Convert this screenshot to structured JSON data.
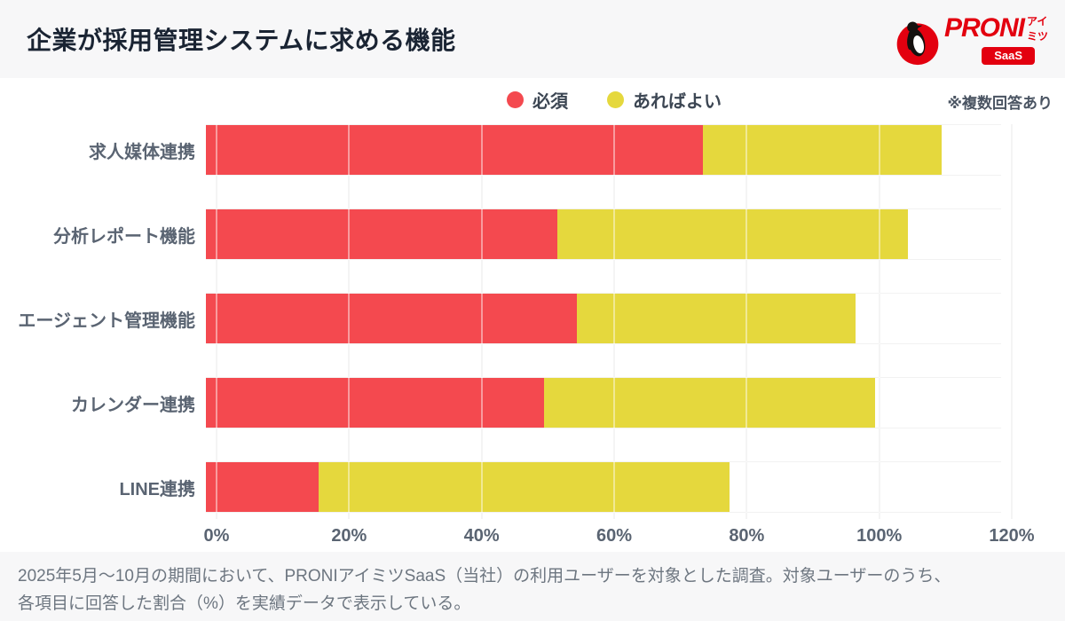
{
  "header": {
    "title": "企業が採用管理システムに求める機能",
    "logo": {
      "brand": "PRONI",
      "sub": "アイミツ",
      "badge": "SaaS",
      "brand_color": "#e3000f"
    }
  },
  "legend": {
    "items": [
      {
        "label": "必須",
        "color": "#f4494f"
      },
      {
        "label": "あればよい",
        "color": "#e5d83d"
      }
    ],
    "note": "※複数回答あり"
  },
  "chart_data": {
    "type": "bar",
    "orientation": "horizontal",
    "stacked": true,
    "title": "企業が採用管理システムに求める機能",
    "categories": [
      "求人媒体連携",
      "分析レポート機能",
      "エージェント管理機能",
      "カレンダー連携",
      "LINE連携"
    ],
    "series": [
      {
        "name": "必須",
        "color": "#f4494f",
        "values": [
          75,
          53,
          56,
          51,
          17
        ]
      },
      {
        "name": "あればよい",
        "color": "#e5d83d",
        "values": [
          36,
          53,
          42,
          50,
          62
        ]
      }
    ],
    "totals": [
      111,
      106,
      98,
      101,
      79
    ],
    "xlabel": "",
    "ylabel": "",
    "xlim": [
      0,
      120
    ],
    "x_ticks": [
      "0%",
      "20%",
      "40%",
      "60%",
      "80%",
      "100%",
      "120%"
    ],
    "grid": "vertical",
    "legend_position": "top-center"
  },
  "footer": {
    "lines": [
      "2025年5月〜10月の期間において、PRONIアイミツSaaS（当社）の利用ユーザーを対象とした調査。対象ユーザーのうち、",
      "各項目に回答した割合（%）を実績データで表示している。"
    ]
  }
}
